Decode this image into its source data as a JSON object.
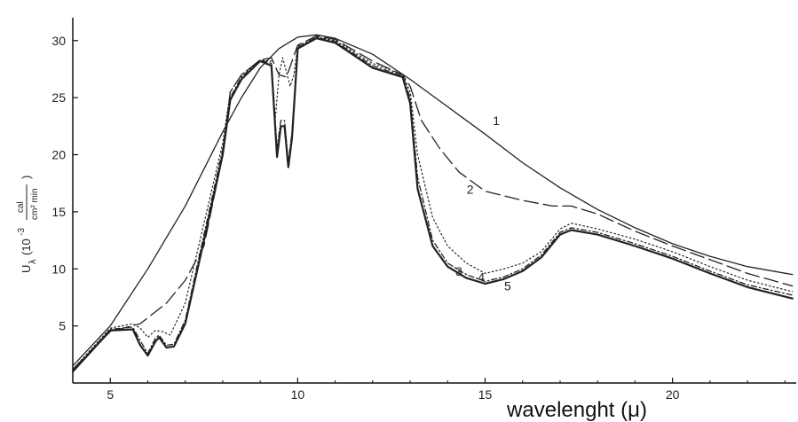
{
  "chart_data": {
    "type": "line",
    "title": "",
    "xlabel": "wavelenght (μ)",
    "ylabel_parts": {
      "symbol": "U",
      "subscript": "λ",
      "open": "(10",
      "exponent": "-3",
      "unit_num": "cal",
      "unit_den": "cm² min",
      "close": ")"
    },
    "xlim": [
      4,
      23.3
    ],
    "ylim": [
      0,
      32
    ],
    "x_ticks": [
      5,
      10,
      15,
      20
    ],
    "y_ticks": [
      5,
      10,
      15,
      20,
      25,
      30
    ],
    "grid": false,
    "series": [
      {
        "name": "1",
        "style": "solid",
        "points": [
          [
            4,
            1.5
          ],
          [
            5,
            5
          ],
          [
            6,
            10
          ],
          [
            7,
            15.5
          ],
          [
            8,
            22
          ],
          [
            8.5,
            25
          ],
          [
            9,
            27.6
          ],
          [
            9.5,
            29.3
          ],
          [
            10,
            30.3
          ],
          [
            10.5,
            30.5
          ],
          [
            11,
            30.2
          ],
          [
            12,
            28.8
          ],
          [
            13,
            26.6
          ],
          [
            14,
            24.2
          ],
          [
            15,
            21.8
          ],
          [
            16,
            19.3
          ],
          [
            17,
            17.1
          ],
          [
            18,
            15.2
          ],
          [
            19,
            13.6
          ],
          [
            20,
            12.2
          ],
          [
            21,
            11.1
          ],
          [
            22,
            10.2
          ],
          [
            23.2,
            9.5
          ]
        ]
      },
      {
        "name": "2",
        "style": "long-dash",
        "points": [
          [
            4,
            1.2
          ],
          [
            5,
            4.5
          ],
          [
            5.8,
            5.2
          ],
          [
            6.5,
            7
          ],
          [
            7,
            9
          ],
          [
            7.5,
            12
          ],
          [
            8,
            20
          ],
          [
            8.2,
            25.5
          ],
          [
            8.5,
            27
          ],
          [
            9,
            28.3
          ],
          [
            9.3,
            28.5
          ],
          [
            9.5,
            27
          ],
          [
            9.7,
            26.8
          ],
          [
            10,
            29.6
          ],
          [
            10.5,
            30.4
          ],
          [
            11,
            30.1
          ],
          [
            12,
            28.2
          ],
          [
            12.8,
            27
          ],
          [
            13,
            26
          ],
          [
            13.3,
            23
          ],
          [
            13.8,
            20.5
          ],
          [
            14.3,
            18.5
          ],
          [
            15,
            16.8
          ],
          [
            16,
            16
          ],
          [
            16.8,
            15.5
          ],
          [
            17.3,
            15.5
          ],
          [
            18,
            14.8
          ],
          [
            19,
            13.3
          ],
          [
            20,
            12
          ],
          [
            21,
            10.8
          ],
          [
            22,
            9.6
          ],
          [
            23.2,
            8.5
          ]
        ]
      },
      {
        "name": "3",
        "style": "dotted",
        "points": [
          [
            4,
            1.2
          ],
          [
            5,
            4.8
          ],
          [
            5.6,
            5.2
          ],
          [
            5.8,
            4.8
          ],
          [
            6,
            4
          ],
          [
            6.2,
            4.6
          ],
          [
            6.4,
            4.5
          ],
          [
            6.6,
            4.2
          ],
          [
            7,
            7
          ],
          [
            7.5,
            14
          ],
          [
            8,
            21
          ],
          [
            8.2,
            25.5
          ],
          [
            8.5,
            27
          ],
          [
            9,
            28.3
          ],
          [
            9.3,
            28.2
          ],
          [
            9.4,
            23
          ],
          [
            9.5,
            27
          ],
          [
            9.6,
            28.5
          ],
          [
            9.8,
            26
          ],
          [
            9.9,
            27
          ],
          [
            10,
            29.5
          ],
          [
            10.5,
            30.3
          ],
          [
            11,
            30
          ],
          [
            12,
            28
          ],
          [
            12.8,
            27
          ],
          [
            13,
            25.5
          ],
          [
            13.2,
            20
          ],
          [
            13.6,
            14.5
          ],
          [
            14,
            12
          ],
          [
            14.5,
            10.5
          ],
          [
            15,
            9.6
          ],
          [
            15.5,
            10
          ],
          [
            16,
            10.5
          ],
          [
            16.5,
            11.5
          ],
          [
            17,
            13.5
          ],
          [
            17.3,
            14
          ],
          [
            18,
            13.5
          ],
          [
            19,
            12.6
          ],
          [
            20,
            11.5
          ],
          [
            21,
            10.2
          ],
          [
            22,
            9
          ],
          [
            23.2,
            8
          ]
        ]
      },
      {
        "name": "4",
        "style": "dash-dot",
        "points": [
          [
            4,
            1.1
          ],
          [
            5,
            4.7
          ],
          [
            5.6,
            4.9
          ],
          [
            5.8,
            3.7
          ],
          [
            6,
            2.6
          ],
          [
            6.2,
            3.9
          ],
          [
            6.3,
            4.2
          ],
          [
            6.5,
            3.3
          ],
          [
            6.7,
            3.4
          ],
          [
            7,
            5.5
          ],
          [
            7.5,
            13
          ],
          [
            8,
            20.5
          ],
          [
            8.2,
            25
          ],
          [
            8.5,
            26.8
          ],
          [
            9,
            28.3
          ],
          [
            9.3,
            28
          ],
          [
            9.45,
            20.5
          ],
          [
            9.55,
            23
          ],
          [
            9.65,
            23
          ],
          [
            9.75,
            19.3
          ],
          [
            9.85,
            22
          ],
          [
            10,
            29.4
          ],
          [
            10.5,
            30.3
          ],
          [
            11,
            29.9
          ],
          [
            12,
            27.8
          ],
          [
            12.8,
            26.9
          ],
          [
            13,
            25
          ],
          [
            13.2,
            18
          ],
          [
            13.6,
            12.5
          ],
          [
            14,
            10.5
          ],
          [
            14.5,
            9.5
          ],
          [
            15,
            8.9
          ],
          [
            15.5,
            9.3
          ],
          [
            16,
            10
          ],
          [
            16.5,
            11.2
          ],
          [
            17,
            13.2
          ],
          [
            17.3,
            13.6
          ],
          [
            18,
            13.2
          ],
          [
            19,
            12.2
          ],
          [
            20,
            11.1
          ],
          [
            21,
            9.8
          ],
          [
            22,
            8.6
          ],
          [
            23.2,
            7.7
          ]
        ]
      },
      {
        "name": "5",
        "style": "solid",
        "points": [
          [
            4,
            1
          ],
          [
            5,
            4.6
          ],
          [
            5.6,
            4.7
          ],
          [
            5.8,
            3.3
          ],
          [
            6,
            2.4
          ],
          [
            6.2,
            3.6
          ],
          [
            6.3,
            4
          ],
          [
            6.5,
            3.1
          ],
          [
            6.7,
            3.2
          ],
          [
            7,
            5.2
          ],
          [
            7.5,
            12.5
          ],
          [
            8,
            20
          ],
          [
            8.2,
            24.8
          ],
          [
            8.5,
            26.6
          ],
          [
            9,
            28.2
          ],
          [
            9.3,
            27.8
          ],
          [
            9.45,
            19.8
          ],
          [
            9.55,
            22.5
          ],
          [
            9.65,
            22.5
          ],
          [
            9.75,
            18.9
          ],
          [
            9.85,
            21.5
          ],
          [
            10,
            29.3
          ],
          [
            10.5,
            30.2
          ],
          [
            11,
            29.8
          ],
          [
            12,
            27.6
          ],
          [
            12.8,
            26.8
          ],
          [
            13,
            24.5
          ],
          [
            13.2,
            17
          ],
          [
            13.6,
            12
          ],
          [
            14,
            10.2
          ],
          [
            14.5,
            9.2
          ],
          [
            15,
            8.7
          ],
          [
            15.5,
            9.1
          ],
          [
            16,
            9.8
          ],
          [
            16.5,
            11
          ],
          [
            17,
            13
          ],
          [
            17.3,
            13.4
          ],
          [
            18,
            13
          ],
          [
            19,
            12
          ],
          [
            20,
            10.9
          ],
          [
            21,
            9.6
          ],
          [
            22,
            8.4
          ],
          [
            23.2,
            7.4
          ]
        ]
      }
    ],
    "curve_labels": [
      {
        "text": "1",
        "x": 15.3,
        "y": 22.6
      },
      {
        "text": "2",
        "x": 14.6,
        "y": 16.6
      },
      {
        "text": "3",
        "x": 14.3,
        "y": 9.4
      },
      {
        "text": "4",
        "x": 14.9,
        "y": 8.9
      },
      {
        "text": "5",
        "x": 15.6,
        "y": 8.1
      }
    ]
  }
}
